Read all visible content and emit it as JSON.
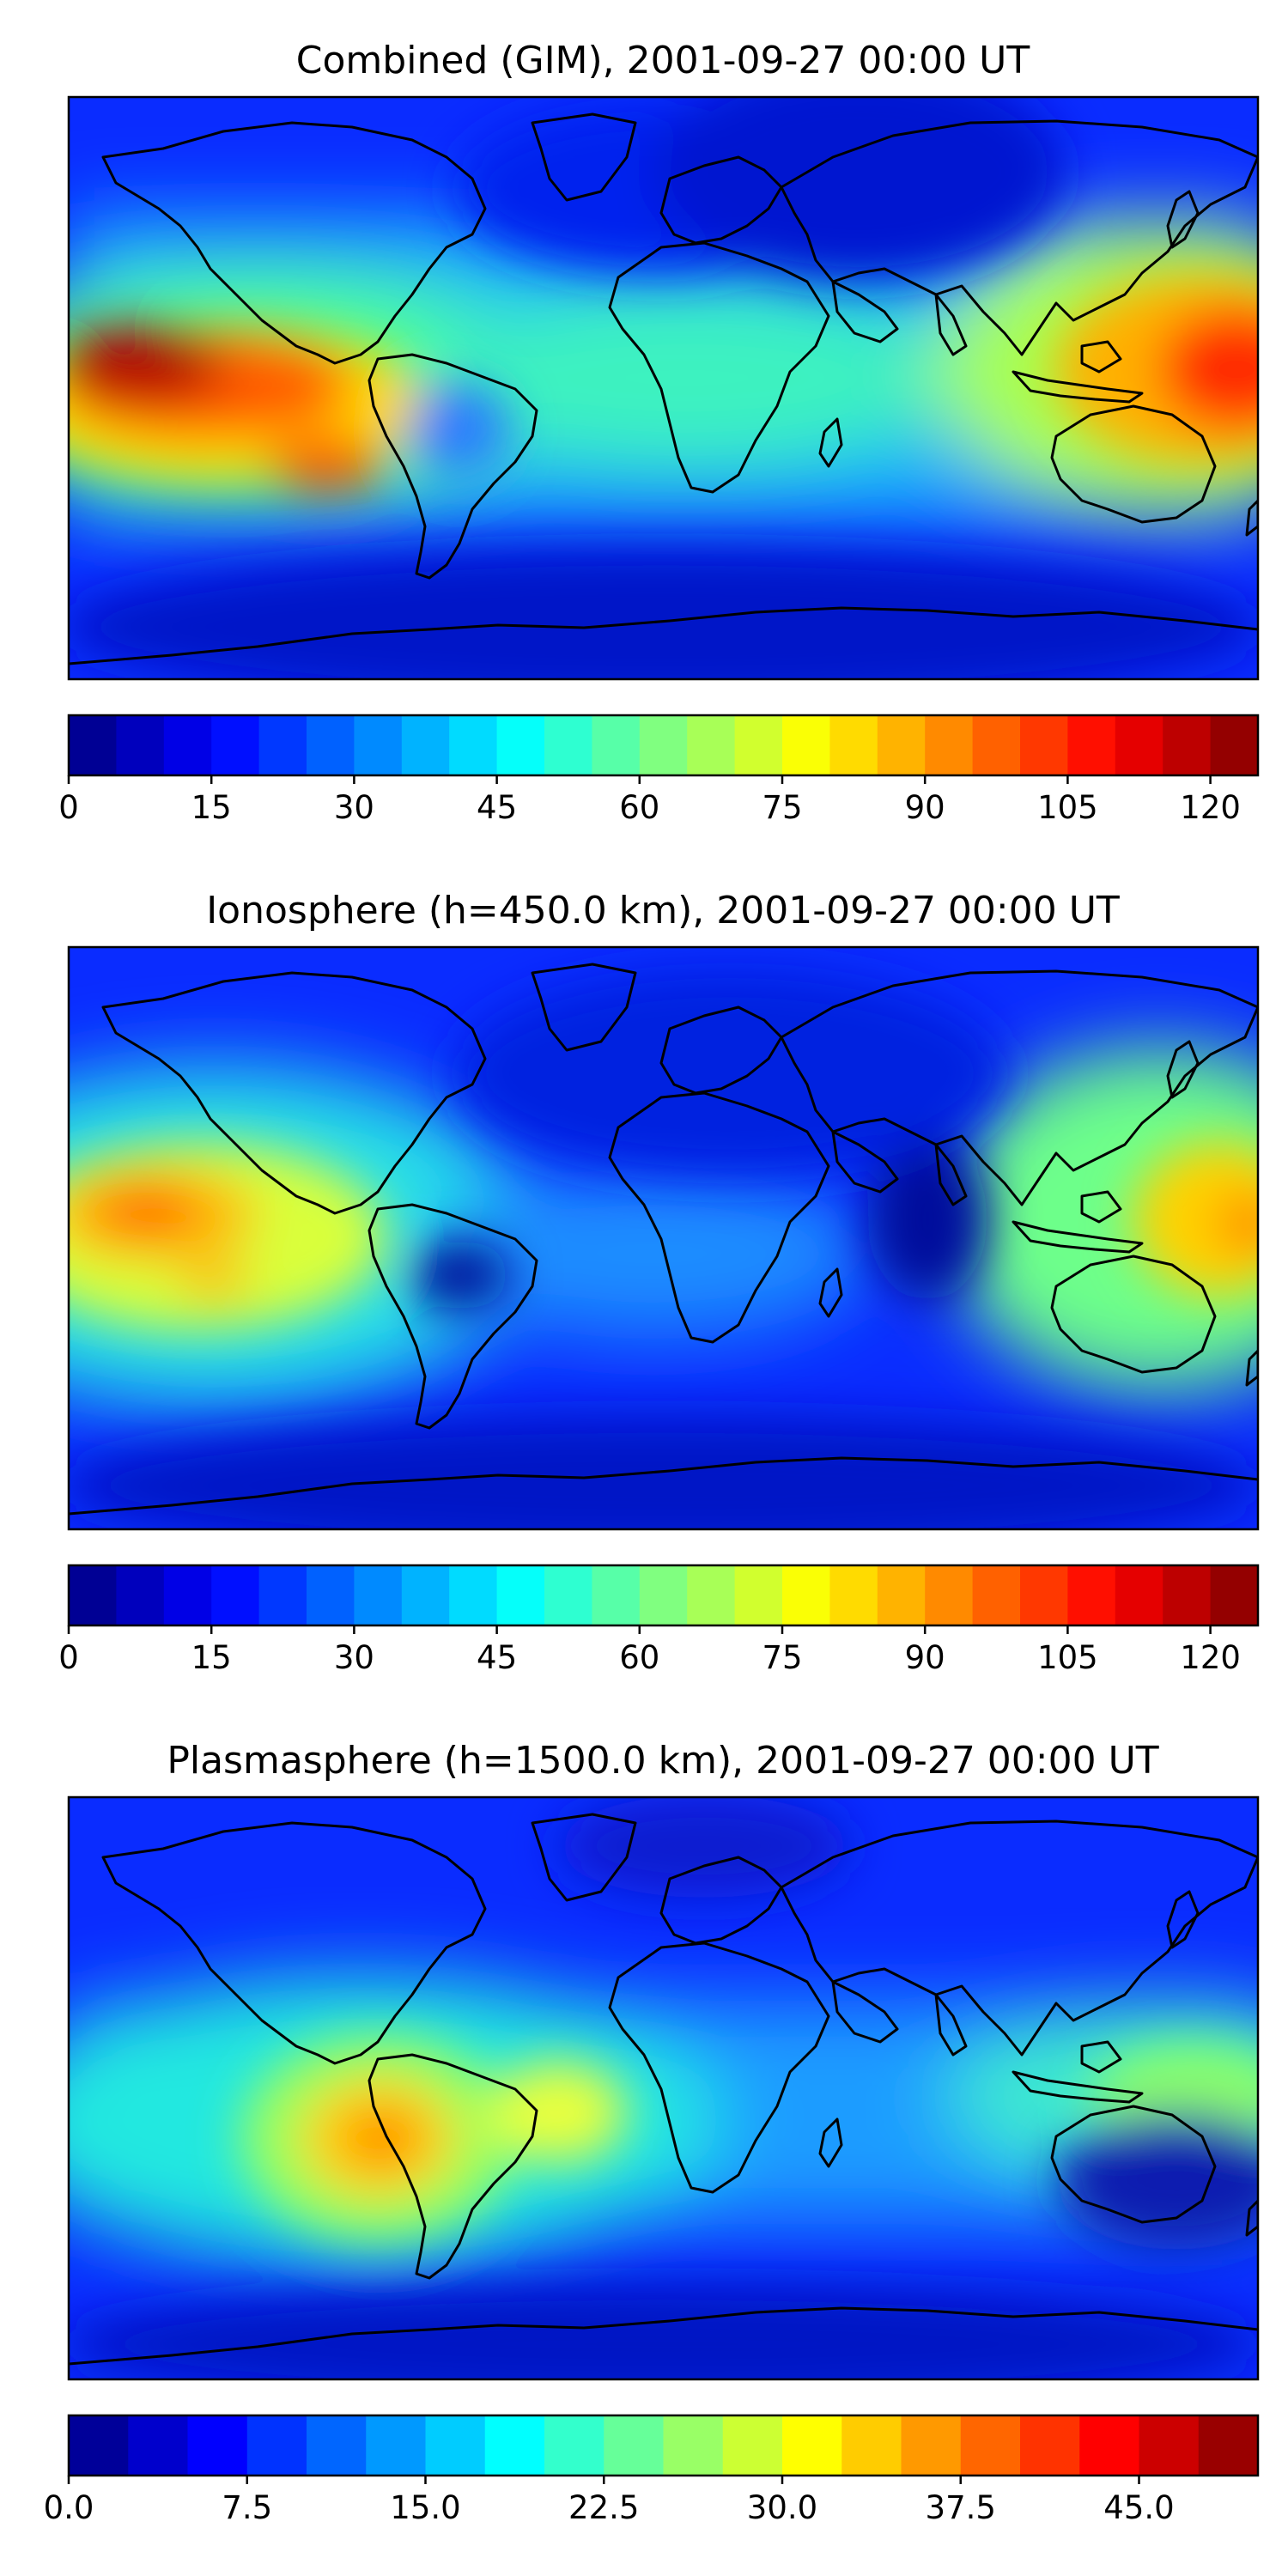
{
  "chart_data": [
    {
      "type": "heatmap",
      "title": "Combined (GIM), 2001-09-27 00:00 UT",
      "colormap": "jet",
      "levels": 25,
      "colorbar": {
        "range": [
          0,
          125
        ],
        "ticks": [
          "0",
          "15",
          "30",
          "45",
          "60",
          "75",
          "90",
          "105",
          "120"
        ],
        "tick_values": [
          0,
          15,
          30,
          45,
          60,
          75,
          90,
          105,
          120
        ]
      },
      "features": [
        {
          "name": "east-pacific-maximum",
          "lon": -160,
          "lat": 0,
          "value": 122
        },
        {
          "name": "pacific-crest-south",
          "lon": -110,
          "lat": -10,
          "value": 112
        },
        {
          "name": "west-pacific-maximum",
          "lon": 175,
          "lat": 0,
          "value": 118
        },
        {
          "name": "south-america-depression",
          "lon": -55,
          "lat": -12,
          "value": 40
        },
        {
          "name": "africa-band",
          "lon": 10,
          "lat": 0,
          "value": 65
        }
      ]
    },
    {
      "type": "heatmap",
      "title": "Ionosphere  (h=450.0 km), 2001-09-27 00:00 UT",
      "colormap": "jet",
      "levels": 25,
      "colorbar": {
        "range": [
          0,
          125
        ],
        "ticks": [
          "0",
          "15",
          "30",
          "45",
          "60",
          "75",
          "90",
          "105",
          "120"
        ],
        "tick_values": [
          0,
          15,
          30,
          45,
          60,
          75,
          90,
          105,
          120
        ]
      },
      "features": [
        {
          "name": "east-pacific-maximum",
          "lon": -155,
          "lat": 10,
          "value": 98
        },
        {
          "name": "west-pacific-maximum",
          "lon": 178,
          "lat": 5,
          "value": 95
        },
        {
          "name": "south-america-depression",
          "lon": -55,
          "lat": -12,
          "value": 10
        },
        {
          "name": "indian-ocean-minimum",
          "lon": 80,
          "lat": 10,
          "value": 8
        }
      ]
    },
    {
      "type": "heatmap",
      "title": "Plasmasphere (h=1500.0 km), 2001-09-27 00:00 UT",
      "colormap": "jet",
      "levels": 20,
      "colorbar": {
        "range": [
          0,
          50
        ],
        "ticks": [
          "0.0",
          "7.5",
          "15.0",
          "22.5",
          "30.0",
          "37.5",
          "45.0"
        ],
        "tick_values": [
          0,
          7.5,
          15,
          22.5,
          30,
          37.5,
          45
        ]
      },
      "features": [
        {
          "name": "peru-maximum",
          "lon": -85,
          "lat": -15,
          "value": 37
        },
        {
          "name": "brazil-maximum",
          "lon": -38,
          "lat": -8,
          "value": 32
        },
        {
          "name": "west-pacific-maximum",
          "lon": 175,
          "lat": 10,
          "value": 26
        },
        {
          "name": "australia-minimum",
          "lon": 145,
          "lat": -25,
          "value": 3
        }
      ]
    }
  ]
}
